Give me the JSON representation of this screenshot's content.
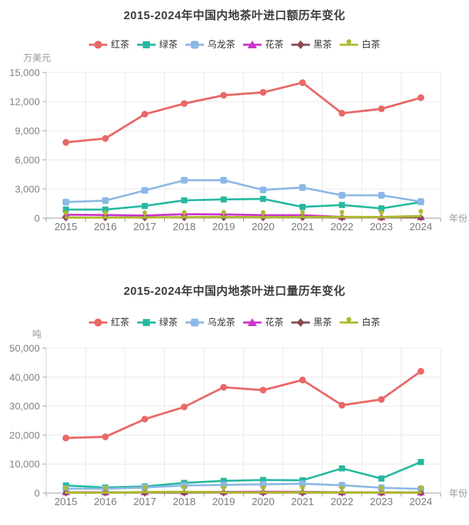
{
  "charts": [
    {
      "title": "2015-2024年中国内地茶叶进口额历年变化",
      "unit_label": "万美元",
      "x_axis_name": "年份",
      "chart_data": {
        "type": "line",
        "x": [
          "2015",
          "2016",
          "2017",
          "2018",
          "2019",
          "2020",
          "2021",
          "2022",
          "2023",
          "2024"
        ],
        "ylim": [
          0,
          15000
        ],
        "ytick_step": 3000,
        "grid": true,
        "legend_position": "top",
        "series": [
          {
            "name": "红茶",
            "color": "#e96868",
            "marker": "circle",
            "values": [
              7800,
              8200,
              10700,
              11800,
              12650,
              12950,
              13950,
              10800,
              11250,
              12400
            ]
          },
          {
            "name": "绿茶",
            "color": "#26b8a0",
            "marker": "square",
            "values": [
              880,
              880,
              1250,
              1830,
              1920,
              1980,
              1150,
              1350,
              1000,
              1650
            ]
          },
          {
            "name": "乌龙茶",
            "color": "#8cb8e6",
            "marker": "roundsquare",
            "values": [
              1650,
              1800,
              2850,
              3900,
              3900,
              2900,
              3150,
              2350,
              2350,
              1700
            ]
          },
          {
            "name": "花茶",
            "color": "#cc33cc",
            "marker": "triangle",
            "values": [
              350,
              320,
              260,
              400,
              380,
              300,
              300,
              130,
              100,
              90
            ]
          },
          {
            "name": "黑茶",
            "color": "#8a4a52",
            "marker": "diamond",
            "values": [
              40,
              40,
              40,
              50,
              60,
              50,
              60,
              40,
              40,
              50
            ]
          },
          {
            "name": "白茶",
            "color": "#adb831",
            "marker": "pin",
            "values": [
              60,
              60,
              70,
              90,
              110,
              90,
              110,
              120,
              100,
              210
            ]
          }
        ]
      }
    },
    {
      "title": "2015-2024年中国内地茶叶进口量历年变化",
      "unit_label": "吨",
      "x_axis_name": "年份",
      "chart_data": {
        "type": "line",
        "x": [
          "2015",
          "2016",
          "2017",
          "2018",
          "2019",
          "2020",
          "2021",
          "2022",
          "2023",
          "2024"
        ],
        "ylim": [
          0,
          50000
        ],
        "ytick_step": 10000,
        "grid": true,
        "legend_position": "top",
        "series": [
          {
            "name": "红茶",
            "color": "#e96868",
            "marker": "circle",
            "values": [
              19000,
              19400,
              25500,
              29700,
              36500,
              35500,
              39000,
              30300,
              32300,
              42000
            ]
          },
          {
            "name": "绿茶",
            "color": "#26b8a0",
            "marker": "square",
            "values": [
              2600,
              1900,
              2300,
              3500,
              4200,
              4500,
              4400,
              8500,
              5000,
              10700
            ]
          },
          {
            "name": "乌龙茶",
            "color": "#8cb8e6",
            "marker": "roundsquare",
            "values": [
              1500,
              1450,
              1900,
              2600,
              2800,
              3000,
              3200,
              2700,
              1800,
              1400
            ]
          },
          {
            "name": "花茶",
            "color": "#cc33cc",
            "marker": "triangle",
            "values": [
              280,
              260,
              280,
              350,
              400,
              450,
              420,
              280,
              220,
              220
            ]
          },
          {
            "name": "黑茶",
            "color": "#8a4a52",
            "marker": "diamond",
            "values": [
              60,
              50,
              50,
              60,
              70,
              60,
              70,
              50,
              50,
              60
            ]
          },
          {
            "name": "白茶",
            "color": "#adb831",
            "marker": "pin",
            "values": [
              150,
              120,
              300,
              400,
              250,
              200,
              250,
              180,
              150,
              200
            ]
          }
        ]
      }
    }
  ],
  "style_colors": {
    "grid_line": "#e8e8e8",
    "axis_line": "#999999",
    "left_axis_line": "#cccccc",
    "tick_text": "#828282",
    "title_text": "#3c3c3c",
    "legend_text": "#333333"
  }
}
